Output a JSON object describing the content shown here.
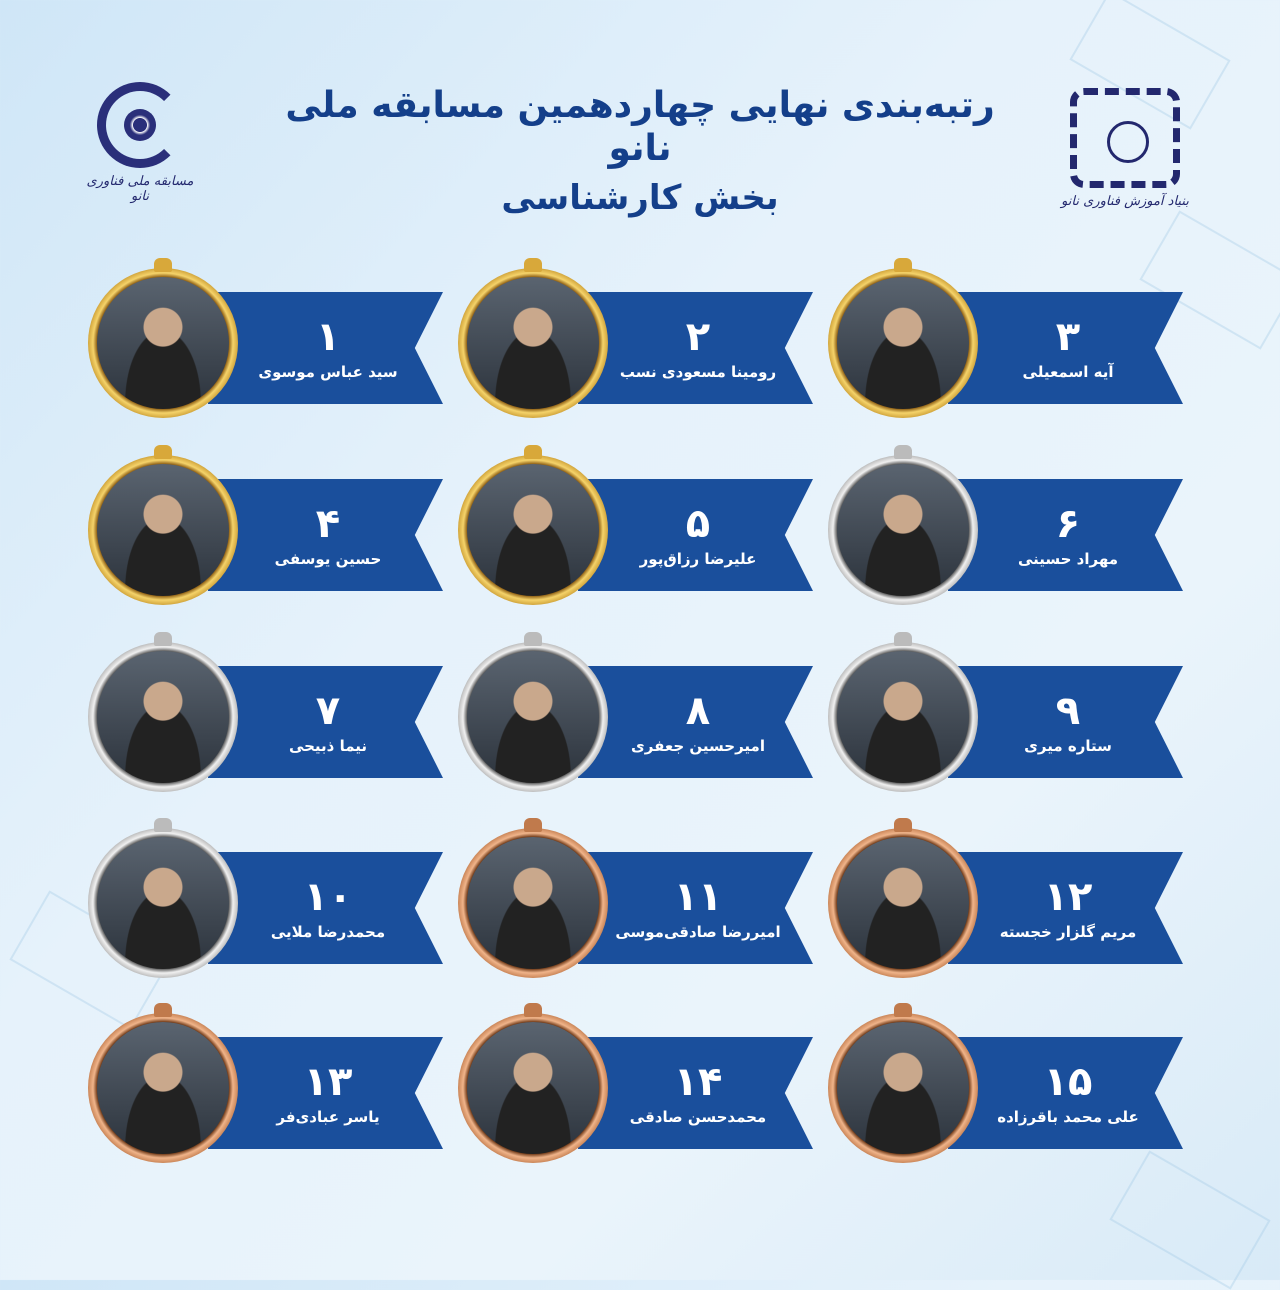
{
  "header": {
    "title": "رتبه‌بندی نهایی چهاردهمین مسابقه ملی نانو",
    "subtitle": "بخش کارشناسی",
    "logo_left_text": "مسابقه ملی فناوری نانو",
    "logo_right_text": "بنیاد آموزش فناوری نانو"
  },
  "ranking": [
    {
      "rank": "۱",
      "name": "سید عباس موسوی",
      "medal": "gold"
    },
    {
      "rank": "۲",
      "name": "رومینا مسعودی نسب",
      "medal": "gold"
    },
    {
      "rank": "۳",
      "name": "آیه اسمعیلی",
      "medal": "gold"
    },
    {
      "rank": "۴",
      "name": "حسین یوسفی",
      "medal": "gold"
    },
    {
      "rank": "۵",
      "name": "علیرضا رزاق‌پور",
      "medal": "gold"
    },
    {
      "rank": "۶",
      "name": "مهراد حسینی",
      "medal": "silver"
    },
    {
      "rank": "۷",
      "name": "نیما ذبیحی",
      "medal": "silver"
    },
    {
      "rank": "۸",
      "name": "امیرحسین جعفری",
      "medal": "silver"
    },
    {
      "rank": "۹",
      "name": "ستاره میری",
      "medal": "silver"
    },
    {
      "rank": "۱۰",
      "name": "محمدرضا ملایی",
      "medal": "silver"
    },
    {
      "rank": "۱۱",
      "name": "امیررضا صادقی‌موسی",
      "medal": "bronze"
    },
    {
      "rank": "۱۲",
      "name": "مریم گلزار خجسته",
      "medal": "bronze"
    },
    {
      "rank": "۱۳",
      "name": "یاسر عبادی‌فر",
      "medal": "bronze"
    },
    {
      "rank": "۱۴",
      "name": "محمدحسن صادقی",
      "medal": "bronze"
    },
    {
      "rank": "۱۵",
      "name": "علی محمد باقرزاده",
      "medal": "bronze"
    }
  ],
  "colors": {
    "banner": "#1a4f9c",
    "title": "#143f8a",
    "gold": "#d8a83a",
    "silver": "#bbbbbb",
    "bronze": "#c07a4c"
  }
}
